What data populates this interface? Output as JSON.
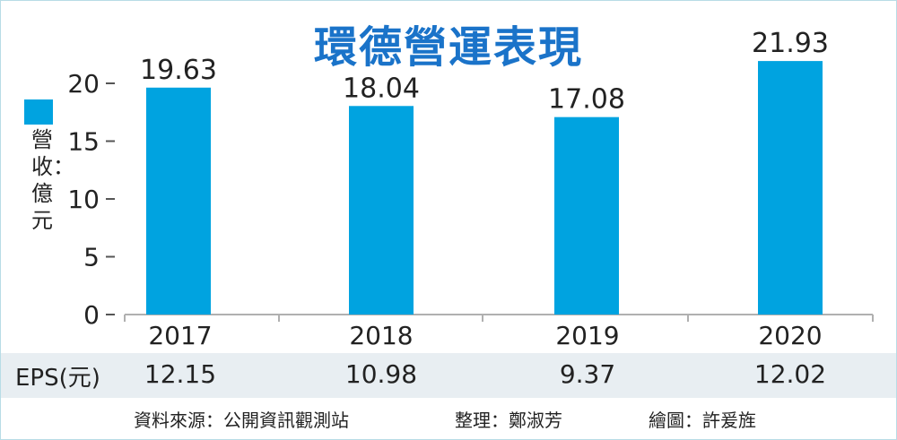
{
  "chart_data": {
    "type": "bar",
    "title": "環德營運表現",
    "ylabel": "營收：億元",
    "categories": [
      "2017",
      "2018",
      "2019",
      "2020"
    ],
    "values": [
      19.63,
      18.04,
      17.08,
      21.93
    ],
    "value_labels": [
      "19.63",
      "18.04",
      "17.08",
      "21.93"
    ],
    "ylim": [
      0,
      22
    ],
    "yticks": [
      0,
      5,
      10,
      15,
      20
    ],
    "ytick_labels": [
      "0",
      "5",
      "10",
      "15",
      "20"
    ],
    "grid": false,
    "bar_color": "#00a3e0",
    "title_color": "#1a73c9"
  },
  "eps": {
    "label": "EPS(元)",
    "values": [
      "12.15",
      "10.98",
      "9.37",
      "12.02"
    ]
  },
  "footer": {
    "source": "資料來源：公開資訊觀測站",
    "editor": "整理：鄭淑芳",
    "artist": "繪圖：許爰旌"
  }
}
